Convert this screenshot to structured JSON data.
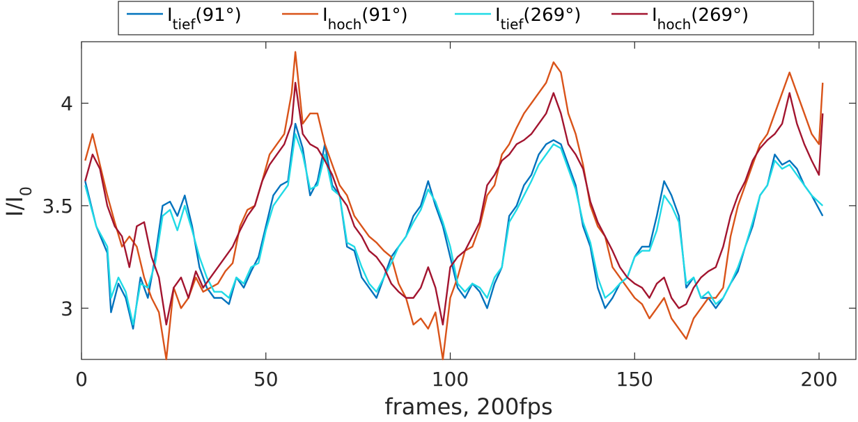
{
  "chart_data": {
    "type": "line",
    "xlabel": "frames, 200fps",
    "ylabel": {
      "base": "I/I",
      "sub": "0"
    },
    "xlim": [
      0,
      210
    ],
    "ylim": [
      2.75,
      4.3
    ],
    "xticks": [
      0,
      50,
      100,
      150,
      200
    ],
    "yticks": [
      3,
      3.5,
      4
    ],
    "ytick_labels": [
      "3",
      "3.5",
      "4"
    ],
    "grid": false,
    "legend_placement": "top, horizontal, outside plot",
    "series": [
      {
        "name": "I",
        "sub": "tief",
        "suffix": "(91°)",
        "color": "#0072BD",
        "x": [
          1,
          4,
          7,
          8,
          10,
          12,
          14,
          16,
          18,
          20,
          22,
          24,
          26,
          28,
          30,
          32,
          34,
          36,
          38,
          40,
          42,
          44,
          46,
          48,
          50,
          52,
          54,
          56,
          58,
          60,
          62,
          64,
          66,
          68,
          70,
          72,
          74,
          76,
          78,
          80,
          82,
          84,
          86,
          88,
          90,
          92,
          94,
          96,
          98,
          100,
          102,
          104,
          106,
          108,
          110,
          112,
          114,
          116,
          118,
          120,
          122,
          124,
          126,
          128,
          130,
          132,
          134,
          136,
          138,
          140,
          142,
          144,
          146,
          148,
          150,
          152,
          154,
          156,
          158,
          160,
          162,
          164,
          166,
          168,
          170,
          172,
          174,
          176,
          178,
          180,
          182,
          184,
          186,
          188,
          190,
          192,
          194,
          196,
          198,
          201
        ],
        "y": [
          3.62,
          3.4,
          3.27,
          2.98,
          3.12,
          3.05,
          2.9,
          3.15,
          3.05,
          3.25,
          3.5,
          3.52,
          3.45,
          3.55,
          3.4,
          3.2,
          3.1,
          3.05,
          3.05,
          3.02,
          3.15,
          3.1,
          3.18,
          3.25,
          3.4,
          3.55,
          3.6,
          3.62,
          3.9,
          3.78,
          3.55,
          3.62,
          3.8,
          3.6,
          3.55,
          3.3,
          3.28,
          3.15,
          3.1,
          3.05,
          3.15,
          3.25,
          3.3,
          3.35,
          3.45,
          3.5,
          3.62,
          3.5,
          3.4,
          3.25,
          3.1,
          3.05,
          3.12,
          3.08,
          3.0,
          3.12,
          3.2,
          3.45,
          3.5,
          3.6,
          3.65,
          3.75,
          3.8,
          3.82,
          3.8,
          3.7,
          3.6,
          3.4,
          3.3,
          3.1,
          3.0,
          3.05,
          3.12,
          3.15,
          3.25,
          3.3,
          3.3,
          3.45,
          3.62,
          3.55,
          3.45,
          3.1,
          3.15,
          3.05,
          3.05,
          3.0,
          3.05,
          3.12,
          3.18,
          3.3,
          3.4,
          3.55,
          3.6,
          3.75,
          3.7,
          3.72,
          3.68,
          3.6,
          3.55,
          3.45
        ]
      },
      {
        "name": "I",
        "sub": "hoch",
        "suffix": "(91°)",
        "color": "#D95319",
        "x": [
          1,
          3,
          5,
          7,
          9,
          11,
          13,
          15,
          17,
          19,
          21,
          23,
          25,
          27,
          29,
          31,
          33,
          35,
          37,
          39,
          41,
          43,
          45,
          47,
          49,
          51,
          53,
          55,
          57,
          58,
          60,
          62,
          64,
          66,
          68,
          70,
          72,
          74,
          76,
          78,
          80,
          82,
          84,
          86,
          88,
          90,
          92,
          94,
          96,
          98,
          100,
          102,
          104,
          106,
          108,
          110,
          112,
          114,
          116,
          118,
          120,
          122,
          124,
          126,
          128,
          130,
          132,
          134,
          136,
          138,
          140,
          142,
          144,
          146,
          148,
          150,
          152,
          154,
          156,
          158,
          160,
          162,
          164,
          166,
          168,
          170,
          172,
          174,
          176,
          178,
          180,
          182,
          184,
          186,
          188,
          190,
          192,
          194,
          196,
          198,
          200,
          201
        ],
        "y": [
          3.72,
          3.85,
          3.7,
          3.55,
          3.42,
          3.3,
          3.35,
          3.3,
          3.15,
          3.05,
          2.98,
          2.75,
          3.1,
          3.0,
          3.05,
          3.15,
          3.08,
          3.1,
          3.12,
          3.18,
          3.22,
          3.4,
          3.48,
          3.5,
          3.62,
          3.75,
          3.8,
          3.85,
          4.05,
          4.25,
          3.9,
          3.95,
          3.95,
          3.8,
          3.7,
          3.6,
          3.55,
          3.45,
          3.4,
          3.35,
          3.32,
          3.28,
          3.25,
          3.12,
          3.05,
          2.92,
          2.95,
          2.9,
          2.98,
          2.75,
          3.05,
          3.15,
          3.28,
          3.3,
          3.4,
          3.55,
          3.6,
          3.75,
          3.8,
          3.88,
          3.95,
          4.0,
          4.05,
          4.1,
          4.2,
          4.15,
          3.95,
          3.85,
          3.7,
          3.5,
          3.4,
          3.35,
          3.2,
          3.15,
          3.1,
          3.05,
          3.02,
          2.95,
          3.0,
          3.05,
          2.95,
          2.9,
          2.85,
          2.95,
          3.0,
          3.05,
          3.05,
          3.1,
          3.35,
          3.5,
          3.6,
          3.7,
          3.8,
          3.85,
          3.95,
          4.05,
          4.15,
          4.05,
          3.95,
          3.85,
          3.8,
          4.1
        ]
      },
      {
        "name": "I",
        "sub": "tief",
        "suffix": "(269°)",
        "color": "#1FDAE6",
        "x": [
          1,
          4,
          7,
          8,
          10,
          12,
          14,
          16,
          18,
          20,
          22,
          24,
          26,
          28,
          30,
          32,
          34,
          36,
          38,
          40,
          42,
          44,
          46,
          48,
          50,
          52,
          54,
          56,
          58,
          60,
          62,
          64,
          66,
          68,
          70,
          72,
          74,
          76,
          78,
          80,
          82,
          84,
          86,
          88,
          90,
          92,
          94,
          96,
          98,
          100,
          102,
          104,
          106,
          108,
          110,
          112,
          114,
          116,
          118,
          120,
          122,
          124,
          126,
          128,
          130,
          132,
          134,
          136,
          138,
          140,
          142,
          144,
          146,
          148,
          150,
          152,
          154,
          156,
          158,
          160,
          162,
          164,
          166,
          168,
          170,
          172,
          174,
          176,
          178,
          180,
          182,
          184,
          186,
          188,
          190,
          192,
          194,
          196,
          198,
          201
        ],
        "y": [
          3.6,
          3.4,
          3.3,
          3.05,
          3.15,
          3.08,
          2.92,
          3.12,
          3.1,
          3.22,
          3.45,
          3.48,
          3.38,
          3.5,
          3.38,
          3.25,
          3.15,
          3.08,
          3.08,
          3.05,
          3.15,
          3.12,
          3.2,
          3.22,
          3.38,
          3.5,
          3.55,
          3.6,
          3.85,
          3.75,
          3.58,
          3.6,
          3.75,
          3.58,
          3.55,
          3.32,
          3.3,
          3.2,
          3.12,
          3.08,
          3.15,
          3.22,
          3.3,
          3.35,
          3.42,
          3.48,
          3.58,
          3.52,
          3.42,
          3.3,
          3.12,
          3.08,
          3.12,
          3.1,
          3.05,
          3.15,
          3.2,
          3.42,
          3.48,
          3.55,
          3.62,
          3.7,
          3.75,
          3.8,
          3.78,
          3.68,
          3.58,
          3.42,
          3.32,
          3.15,
          3.05,
          3.08,
          3.12,
          3.15,
          3.25,
          3.28,
          3.28,
          3.38,
          3.55,
          3.5,
          3.42,
          3.12,
          3.15,
          3.05,
          3.08,
          3.02,
          3.05,
          3.12,
          3.2,
          3.3,
          3.42,
          3.55,
          3.6,
          3.72,
          3.68,
          3.7,
          3.65,
          3.6,
          3.55,
          3.5
        ]
      },
      {
        "name": "I",
        "sub": "hoch",
        "suffix": "(269°)",
        "color": "#A2142F",
        "x": [
          1,
          3,
          5,
          7,
          9,
          11,
          13,
          15,
          17,
          19,
          21,
          23,
          25,
          27,
          29,
          31,
          33,
          35,
          37,
          39,
          41,
          43,
          45,
          47,
          49,
          51,
          53,
          55,
          57,
          58,
          60,
          62,
          64,
          66,
          68,
          70,
          72,
          74,
          76,
          78,
          80,
          82,
          84,
          86,
          88,
          90,
          92,
          94,
          96,
          98,
          100,
          102,
          104,
          106,
          108,
          110,
          112,
          114,
          116,
          118,
          120,
          122,
          124,
          126,
          128,
          130,
          132,
          134,
          136,
          138,
          140,
          142,
          144,
          146,
          148,
          150,
          152,
          154,
          156,
          158,
          160,
          162,
          164,
          166,
          168,
          170,
          172,
          174,
          176,
          178,
          180,
          182,
          184,
          186,
          188,
          190,
          192,
          194,
          196,
          198,
          200,
          201
        ],
        "y": [
          3.62,
          3.75,
          3.68,
          3.5,
          3.4,
          3.35,
          3.2,
          3.4,
          3.42,
          3.25,
          3.15,
          2.92,
          3.1,
          3.15,
          3.05,
          3.18,
          3.1,
          3.15,
          3.2,
          3.25,
          3.3,
          3.38,
          3.45,
          3.5,
          3.62,
          3.7,
          3.75,
          3.8,
          3.9,
          4.1,
          3.85,
          3.8,
          3.78,
          3.72,
          3.65,
          3.55,
          3.5,
          3.4,
          3.35,
          3.28,
          3.25,
          3.2,
          3.12,
          3.08,
          3.05,
          3.05,
          3.1,
          3.2,
          3.1,
          2.92,
          3.2,
          3.25,
          3.28,
          3.35,
          3.42,
          3.6,
          3.65,
          3.72,
          3.75,
          3.8,
          3.82,
          3.85,
          3.9,
          3.95,
          4.05,
          3.95,
          3.8,
          3.75,
          3.68,
          3.52,
          3.42,
          3.35,
          3.28,
          3.2,
          3.15,
          3.12,
          3.1,
          3.05,
          3.12,
          3.15,
          3.05,
          3.0,
          3.02,
          3.1,
          3.15,
          3.18,
          3.2,
          3.3,
          3.45,
          3.55,
          3.62,
          3.72,
          3.78,
          3.82,
          3.85,
          3.9,
          4.05,
          3.9,
          3.8,
          3.72,
          3.65,
          3.95
        ]
      }
    ]
  }
}
